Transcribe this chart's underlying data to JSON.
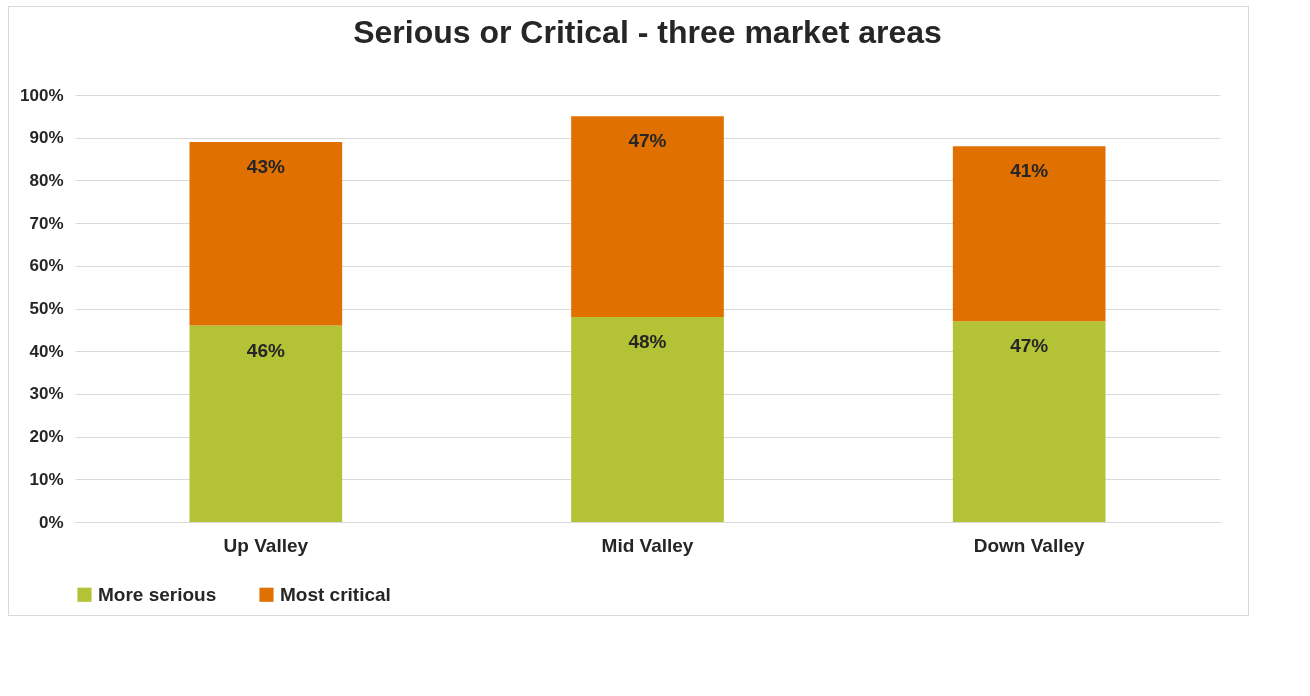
{
  "chart_data": {
    "type": "bar",
    "title": "Serious or Critical - three market areas",
    "categories": [
      "Up Valley",
      "Mid Valley",
      "Down Valley"
    ],
    "stacked": true,
    "series": [
      {
        "name": "More serious",
        "color": "#b4c235",
        "values": [
          46,
          48,
          47
        ],
        "value_labels": [
          "46%",
          "48%",
          "47%"
        ]
      },
      {
        "name": "Most critical",
        "color": "#e07000",
        "values": [
          43,
          47,
          41
        ],
        "value_labels": [
          "43%",
          "47%",
          "41%"
        ]
      }
    ],
    "ylim": [
      0,
      100
    ],
    "yticks": [
      {
        "value": 0,
        "label": "0%"
      },
      {
        "value": 10,
        "label": "10%"
      },
      {
        "value": 20,
        "label": "20%"
      },
      {
        "value": 30,
        "label": "30%"
      },
      {
        "value": 40,
        "label": "40%"
      },
      {
        "value": 50,
        "label": "50%"
      },
      {
        "value": 60,
        "label": "60%"
      },
      {
        "value": 70,
        "label": "70%"
      },
      {
        "value": 80,
        "label": "80%"
      },
      {
        "value": 90,
        "label": "90%"
      },
      {
        "value": 100,
        "label": "100%"
      }
    ],
    "grid": "y",
    "legend": "bottom"
  }
}
